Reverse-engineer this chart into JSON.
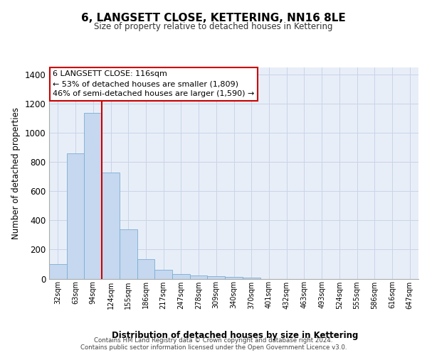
{
  "title": "6, LANGSETT CLOSE, KETTERING, NN16 8LE",
  "subtitle": "Size of property relative to detached houses in Kettering",
  "xlabel": "Distribution of detached houses by size in Kettering",
  "ylabel": "Number of detached properties",
  "bar_labels": [
    "32sqm",
    "63sqm",
    "94sqm",
    "124sqm",
    "155sqm",
    "186sqm",
    "217sqm",
    "247sqm",
    "278sqm",
    "309sqm",
    "340sqm",
    "370sqm",
    "401sqm",
    "432sqm",
    "463sqm",
    "493sqm",
    "524sqm",
    "555sqm",
    "586sqm",
    "616sqm",
    "647sqm"
  ],
  "bar_values": [
    100,
    860,
    1140,
    730,
    340,
    135,
    60,
    30,
    20,
    15,
    10,
    5,
    0,
    0,
    0,
    0,
    0,
    0,
    0,
    0,
    0
  ],
  "bar_color": "#c5d8ef",
  "bar_edge_color": "#7aadd4",
  "grid_color": "#c8d4e8",
  "background_color": "#e8eef8",
  "vline_color": "#cc0000",
  "annotation_text": "6 LANGSETT CLOSE: 116sqm\n← 53% of detached houses are smaller (1,809)\n46% of semi-detached houses are larger (1,590) →",
  "annotation_box_color": "#ffffff",
  "annotation_box_edge_color": "#cc0000",
  "footer_text": "Contains HM Land Registry data © Crown copyright and database right 2024.\nContains public sector information licensed under the Open Government Licence v3.0.",
  "ylim": [
    0,
    1450
  ],
  "yticks": [
    0,
    200,
    400,
    600,
    800,
    1000,
    1200,
    1400
  ]
}
